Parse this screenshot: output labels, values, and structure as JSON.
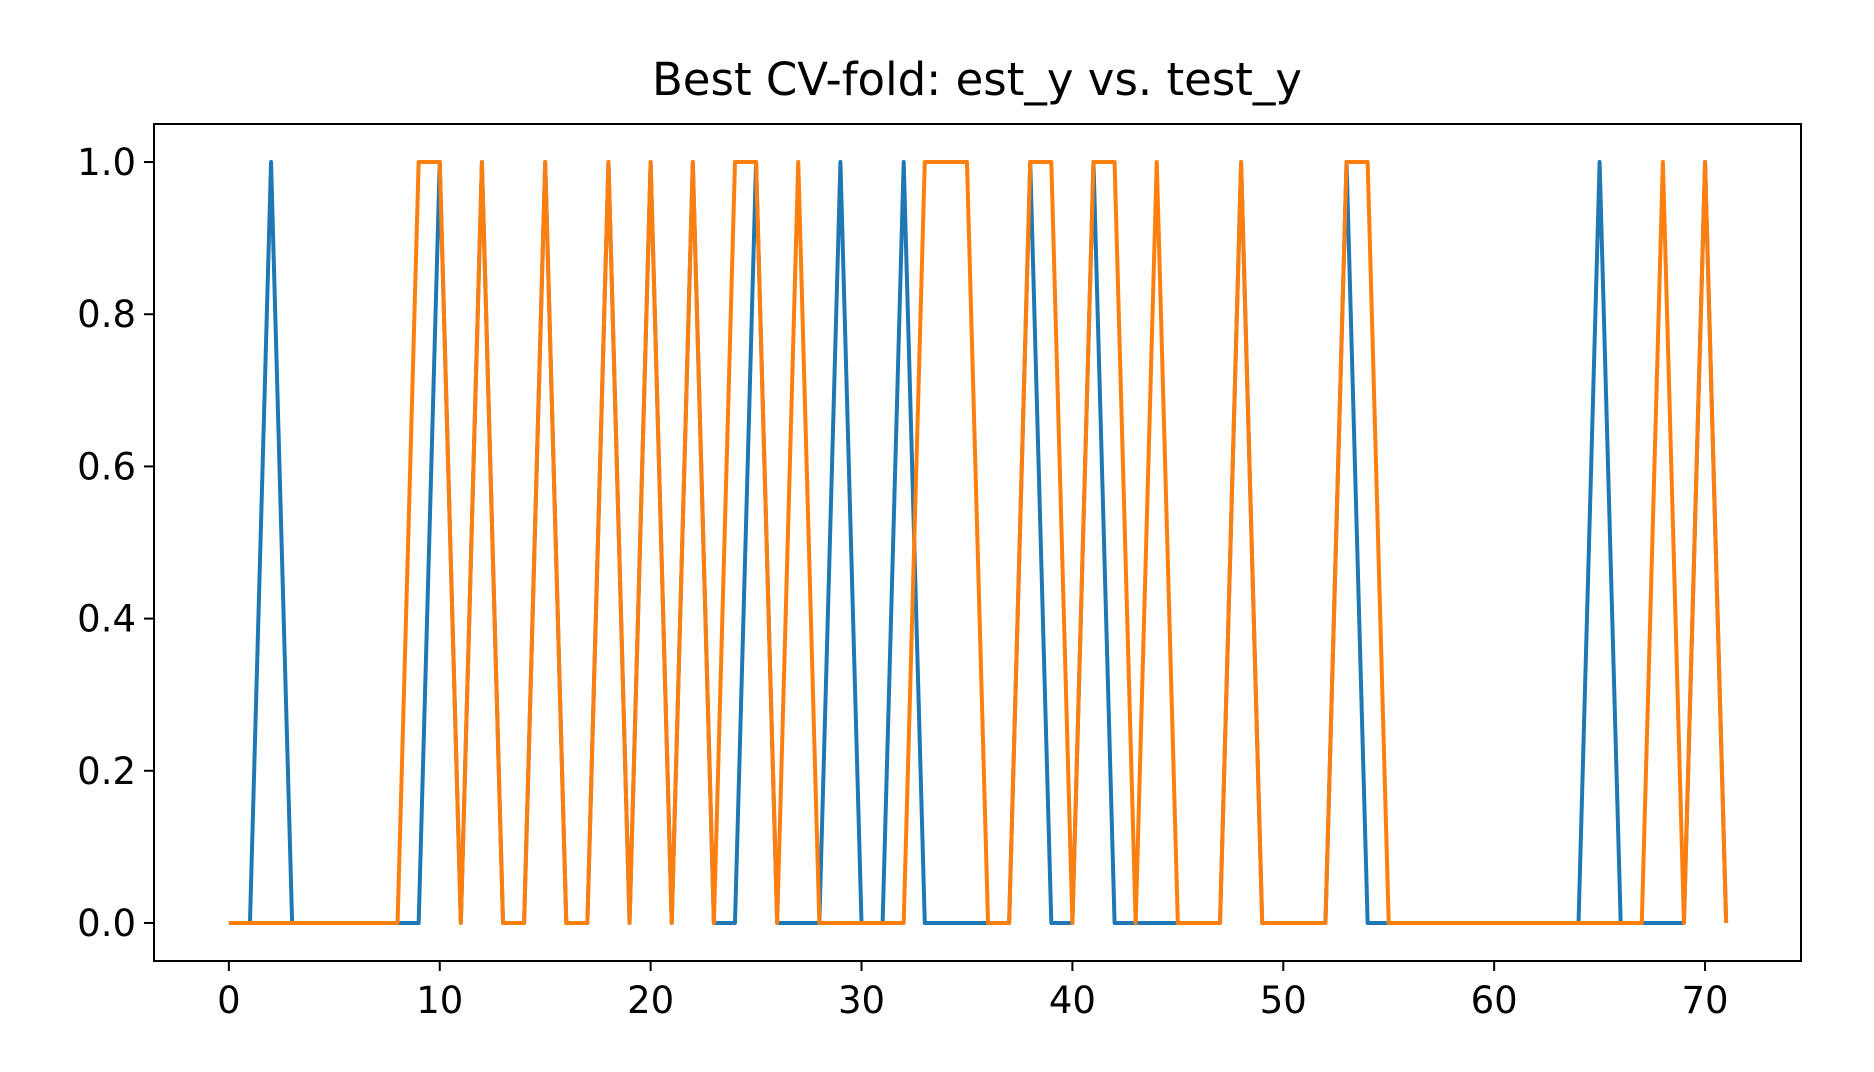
{
  "chart_data": {
    "type": "line",
    "title": "Best CV-fold: est_y vs. test_y",
    "x": [
      0,
      1,
      2,
      3,
      4,
      5,
      6,
      7,
      8,
      9,
      10,
      11,
      12,
      13,
      14,
      15,
      16,
      17,
      18,
      19,
      20,
      21,
      22,
      23,
      24,
      25,
      26,
      27,
      28,
      29,
      30,
      31,
      32,
      33,
      34,
      35,
      36,
      37,
      38,
      39,
      40,
      41,
      42,
      43,
      44,
      45,
      46,
      47,
      48,
      49,
      50,
      51,
      52,
      53,
      54,
      55,
      56,
      57,
      58,
      59,
      60,
      61,
      62,
      63,
      64,
      65,
      66,
      67,
      68,
      69,
      70,
      71
    ],
    "series": [
      {
        "color": "#1f77b4",
        "values": [
          0,
          0,
          1,
          0,
          0,
          0,
          0,
          0,
          0,
          0,
          1,
          0,
          1,
          0,
          0,
          1,
          0,
          0,
          1,
          0,
          1,
          0,
          1,
          0,
          0,
          1,
          0,
          0,
          0,
          1,
          0,
          0,
          1,
          0,
          0,
          0,
          0,
          0,
          1,
          0,
          0,
          1,
          0,
          0,
          0,
          0,
          0,
          0,
          1,
          0,
          0,
          0,
          0,
          1,
          0,
          0,
          0,
          0,
          0,
          0,
          0,
          0,
          0,
          0,
          0,
          1,
          0,
          0,
          0,
          0,
          1,
          0
        ]
      },
      {
        "color": "#ff7f0e",
        "values": [
          0,
          0,
          0,
          0,
          0,
          0,
          0,
          0,
          0,
          1,
          1,
          0,
          1,
          0,
          0,
          1,
          0,
          0,
          1,
          0,
          1,
          0,
          1,
          0,
          1,
          1,
          0,
          1,
          0,
          0,
          0,
          0,
          0,
          1,
          1,
          1,
          0,
          0,
          1,
          1,
          0,
          1,
          1,
          0,
          1,
          0,
          0,
          0,
          1,
          0,
          0,
          0,
          0,
          1,
          1,
          0,
          0,
          0,
          0,
          0,
          0,
          0,
          0,
          0,
          0,
          0,
          0,
          0,
          1,
          0,
          1,
          0
        ]
      }
    ],
    "xlim": [
      -3.55,
      74.55
    ],
    "xticks": [
      0,
      10,
      20,
      30,
      40,
      50,
      60,
      70
    ],
    "ylim": [
      -0.05,
      1.05
    ],
    "yticks": [
      {
        "value": 0,
        "label": "0.0"
      },
      {
        "value": 0.2,
        "label": "0.2"
      },
      {
        "value": 0.4,
        "label": "0.4"
      },
      {
        "value": 0.6,
        "label": "0.6"
      },
      {
        "value": 0.8,
        "label": "0.8"
      },
      {
        "value": 1,
        "label": "1.0"
      }
    ],
    "grid": false
  }
}
